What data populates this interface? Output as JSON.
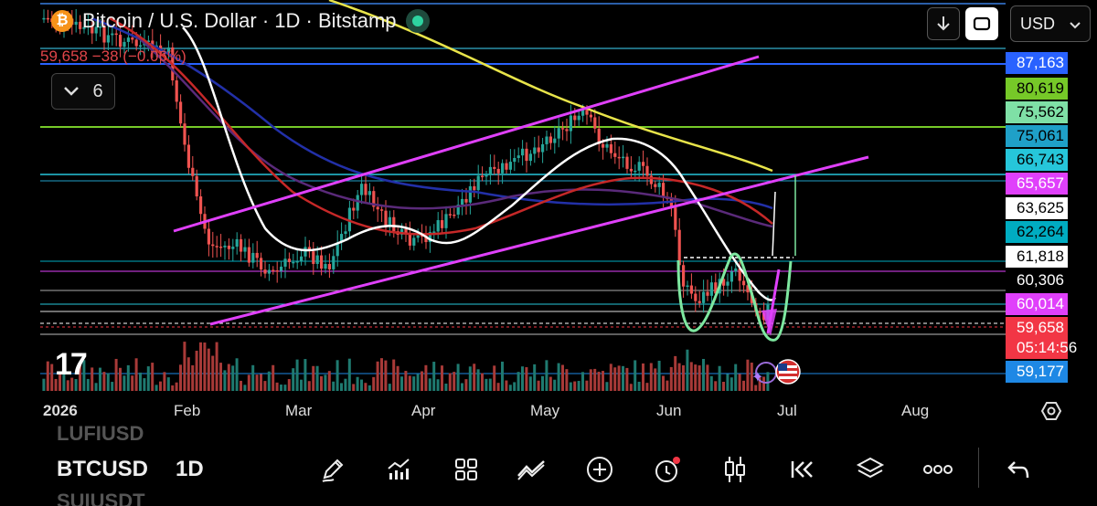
{
  "header": {
    "title": "Bitcoin / U.S. Dollar · 1D · Bitstamp",
    "coin_glyph": "₿",
    "price_change": "59,658  −38 (−0.06%)",
    "indicators_count": "6",
    "currency": "USD"
  },
  "price_tags": [
    {
      "label": "87,163",
      "bg": "#2962ff",
      "fg": "#ffffff"
    },
    {
      "label": "80,619",
      "bg": "#76c928",
      "fg": "#000000"
    },
    {
      "label": "75,562",
      "bg": "#7fe0a6",
      "fg": "#000000"
    },
    {
      "label": "75,061",
      "bg": "#1fa0c8",
      "fg": "#000000"
    },
    {
      "label": "66,743",
      "bg": "#26c6da",
      "fg": "#000000"
    },
    {
      "label": "65,657",
      "bg": "#e040fb",
      "fg": "#ffffff"
    },
    {
      "label": "63,625",
      "bg": "#ffffff",
      "fg": "#000000"
    },
    {
      "label": "62,264",
      "bg": "#00acc1",
      "fg": "#000000"
    },
    {
      "label": "61,818",
      "bg": "#ffffff",
      "fg": "#000000"
    },
    {
      "label": "60,306",
      "bg": "#000000",
      "fg": "#ffffff"
    },
    {
      "label": "60,014",
      "bg": "#e040fb",
      "fg": "#ffffff"
    },
    {
      "label": "59,658",
      "bg": "#f23645",
      "fg": "#ffffff"
    },
    {
      "label": "05:14:56",
      "bg": "#f23645",
      "fg": "#ffffff"
    },
    {
      "label": "59,177",
      "bg": "#1e88e5",
      "fg": "#ffffff"
    }
  ],
  "x_axis": [
    "2026",
    "Feb",
    "Mar",
    "Apr",
    "May",
    "Jun",
    "Jul",
    "Aug"
  ],
  "watermark": "17",
  "bottom_bar": {
    "symbol_prev": "LUFIUSD",
    "symbol": "BTCUSD",
    "symbol_next": "SUIUSDT",
    "timeframe": "1D"
  },
  "toolbar_icons": [
    "pencil-icon",
    "indicators-icon",
    "grid-icon",
    "line-tool-icon",
    "plus-icon",
    "alert-icon",
    "candle-icon",
    "replay-icon",
    "layers-icon",
    "more-icon",
    "undo-icon"
  ],
  "colors": {
    "up": "#26a69a",
    "down": "#ef5350",
    "channel": "#e040fb",
    "sma_white": "#ffffff",
    "sma_yellow": "#e8e44a",
    "sma_red": "#b71c1c",
    "sma_blue": "#1a237e",
    "pattern_green": "#7ee8a0"
  }
}
